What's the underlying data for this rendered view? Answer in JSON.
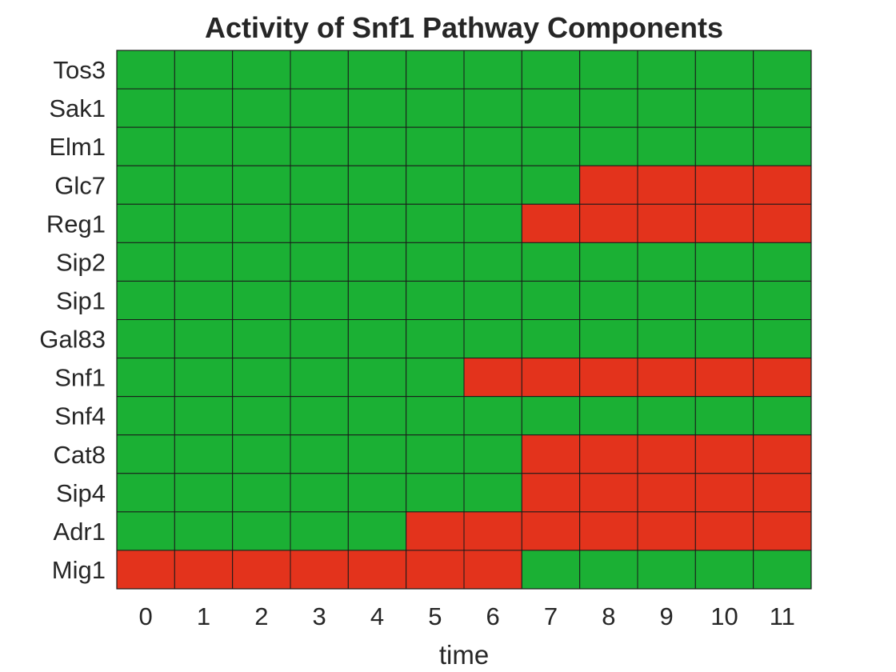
{
  "chart_data": {
    "type": "heatmap",
    "title": "Activity of Snf1 Pathway Components",
    "xlabel": "time",
    "ylabel": "",
    "x": [
      "0",
      "1",
      "2",
      "3",
      "4",
      "5",
      "6",
      "7",
      "8",
      "9",
      "10",
      "11"
    ],
    "y": [
      "Tos3",
      "Sak1",
      "Elm1",
      "Glc7",
      "Reg1",
      "Sip2",
      "Sip1",
      "Gal83",
      "Snf1",
      "Snf4",
      "Cat8",
      "Sip4",
      "Adr1",
      "Mig1"
    ],
    "values": [
      [
        1,
        1,
        1,
        1,
        1,
        1,
        1,
        1,
        1,
        1,
        1,
        1
      ],
      [
        1,
        1,
        1,
        1,
        1,
        1,
        1,
        1,
        1,
        1,
        1,
        1
      ],
      [
        1,
        1,
        1,
        1,
        1,
        1,
        1,
        1,
        1,
        1,
        1,
        1
      ],
      [
        1,
        1,
        1,
        1,
        1,
        1,
        1,
        1,
        0,
        0,
        0,
        0
      ],
      [
        1,
        1,
        1,
        1,
        1,
        1,
        1,
        0,
        0,
        0,
        0,
        0
      ],
      [
        1,
        1,
        1,
        1,
        1,
        1,
        1,
        1,
        1,
        1,
        1,
        1
      ],
      [
        1,
        1,
        1,
        1,
        1,
        1,
        1,
        1,
        1,
        1,
        1,
        1
      ],
      [
        1,
        1,
        1,
        1,
        1,
        1,
        1,
        1,
        1,
        1,
        1,
        1
      ],
      [
        1,
        1,
        1,
        1,
        1,
        1,
        0,
        0,
        0,
        0,
        0,
        0
      ],
      [
        1,
        1,
        1,
        1,
        1,
        1,
        1,
        1,
        1,
        1,
        1,
        1
      ],
      [
        1,
        1,
        1,
        1,
        1,
        1,
        1,
        0,
        0,
        0,
        0,
        0
      ],
      [
        1,
        1,
        1,
        1,
        1,
        1,
        1,
        0,
        0,
        0,
        0,
        0
      ],
      [
        1,
        1,
        1,
        1,
        1,
        0,
        0,
        0,
        0,
        0,
        0,
        0
      ],
      [
        0,
        0,
        0,
        0,
        0,
        0,
        0,
        1,
        1,
        1,
        1,
        1
      ]
    ],
    "colors": {
      "1": "#1bb034",
      "0": "#e3331c"
    },
    "grid": true,
    "legend": "none"
  }
}
